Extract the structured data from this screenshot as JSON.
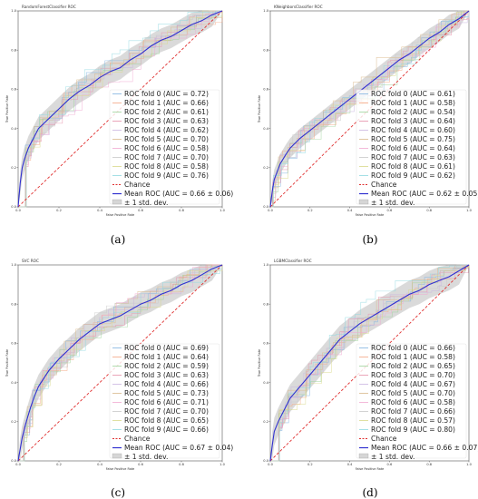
{
  "figure": {
    "panel_letters": [
      "(a)",
      "(b)",
      "(c)",
      "(d)"
    ]
  },
  "colors": {
    "fold_colors": [
      "#7fb2e0",
      "#f4a582",
      "#9ed39a",
      "#e58fa8",
      "#c9b4e0",
      "#d9b88a",
      "#f0a8d0",
      "#c8c8c8",
      "#d8d88a",
      "#8fd8e0"
    ],
    "chance": "#e03030",
    "mean": "#3030d0",
    "band": "#bbbbbb"
  },
  "chart_data": [
    {
      "type": "line",
      "title": "RandomForestClassifier ROC",
      "xlabel": "False Positive Rate",
      "ylabel": "True Positive Rate",
      "xlim": [
        0.0,
        1.0
      ],
      "ylim": [
        0.0,
        1.0
      ],
      "xticks": [
        "0.0",
        "0.2",
        "0.4",
        "0.6",
        "0.8",
        "1.0"
      ],
      "yticks": [
        "0.0",
        "0.2",
        "0.4",
        "0.6",
        "0.8",
        "1.0"
      ],
      "legend_position": "lower-right",
      "series": [
        {
          "name": "ROC fold 0 (AUC = 0.72)",
          "auc": 0.72
        },
        {
          "name": "ROC fold 1 (AUC = 0.66)",
          "auc": 0.66
        },
        {
          "name": "ROC fold 2 (AUC = 0.61)",
          "auc": 0.61
        },
        {
          "name": "ROC fold 3 (AUC = 0.63)",
          "auc": 0.63
        },
        {
          "name": "ROC fold 4 (AUC = 0.62)",
          "auc": 0.62
        },
        {
          "name": "ROC fold 5 (AUC = 0.70)",
          "auc": 0.7
        },
        {
          "name": "ROC fold 6 (AUC = 0.58)",
          "auc": 0.58
        },
        {
          "name": "ROC fold 7 (AUC = 0.70)",
          "auc": 0.7
        },
        {
          "name": "ROC fold 8 (AUC = 0.58)",
          "auc": 0.58
        },
        {
          "name": "ROC fold 9 (AUC = 0.76)",
          "auc": 0.76
        }
      ],
      "chance": {
        "name": "Chance",
        "x": [
          0,
          1
        ],
        "y": [
          0,
          1
        ]
      },
      "mean": {
        "name": "Mean ROC (AUC = 0.66 ± 0.06)",
        "x": [
          0,
          0.01,
          0.02,
          0.03,
          0.05,
          0.08,
          0.1,
          0.13,
          0.15,
          0.2,
          0.25,
          0.3,
          0.35,
          0.4,
          0.45,
          0.5,
          0.55,
          0.6,
          0.65,
          0.7,
          0.75,
          0.8,
          0.85,
          0.9,
          0.95,
          1.0
        ],
        "y": [
          0,
          0.12,
          0.2,
          0.24,
          0.3,
          0.36,
          0.4,
          0.43,
          0.45,
          0.5,
          0.55,
          0.59,
          0.62,
          0.66,
          0.69,
          0.71,
          0.75,
          0.78,
          0.82,
          0.85,
          0.87,
          0.9,
          0.93,
          0.95,
          0.98,
          1.0
        ]
      },
      "std_band": {
        "name": "± 1 std. dev.",
        "halfwidth": 0.06
      }
    },
    {
      "type": "line",
      "title": "KNeighborsClassifier ROC",
      "xlabel": "False Positive Rate",
      "ylabel": "True Positive Rate",
      "xlim": [
        0.0,
        1.0
      ],
      "ylim": [
        0.0,
        1.0
      ],
      "xticks": [
        "0.0",
        "0.2",
        "0.4",
        "0.6",
        "0.8",
        "1.0"
      ],
      "yticks": [
        "0.0",
        "0.2",
        "0.4",
        "0.6",
        "0.8",
        "1.0"
      ],
      "legend_position": "lower-right",
      "series": [
        {
          "name": "ROC fold 0 (AUC = 0.61)",
          "auc": 0.61
        },
        {
          "name": "ROC fold 1 (AUC = 0.58)",
          "auc": 0.58
        },
        {
          "name": "ROC fold 2 (AUC = 0.54)",
          "auc": 0.54
        },
        {
          "name": "ROC fold 3 (AUC = 0.64)",
          "auc": 0.64
        },
        {
          "name": "ROC fold 4 (AUC = 0.60)",
          "auc": 0.6
        },
        {
          "name": "ROC fold 5 (AUC = 0.75)",
          "auc": 0.75
        },
        {
          "name": "ROC fold 6 (AUC = 0.64)",
          "auc": 0.64
        },
        {
          "name": "ROC fold 7 (AUC = 0.63)",
          "auc": 0.63
        },
        {
          "name": "ROC fold 8 (AUC = 0.61)",
          "auc": 0.61
        },
        {
          "name": "ROC fold 9 (AUC = 0.62)",
          "auc": 0.62
        }
      ],
      "chance": {
        "name": "Chance",
        "x": [
          0,
          1
        ],
        "y": [
          0,
          1
        ]
      },
      "mean": {
        "name": "Mean ROC (AUC = 0.62 ± 0.05)",
        "x": [
          0,
          0.01,
          0.02,
          0.05,
          0.08,
          0.1,
          0.15,
          0.2,
          0.25,
          0.3,
          0.35,
          0.4,
          0.45,
          0.5,
          0.55,
          0.6,
          0.65,
          0.7,
          0.75,
          0.8,
          0.85,
          0.9,
          0.95,
          1.0
        ],
        "y": [
          0,
          0.08,
          0.14,
          0.22,
          0.27,
          0.3,
          0.35,
          0.39,
          0.43,
          0.47,
          0.51,
          0.55,
          0.59,
          0.63,
          0.67,
          0.71,
          0.75,
          0.78,
          0.82,
          0.86,
          0.89,
          0.93,
          0.96,
          1.0
        ]
      },
      "std_band": {
        "name": "± 1 std. dev.",
        "halfwidth": 0.05
      }
    },
    {
      "type": "line",
      "title": "SVC ROC",
      "xlabel": "False Positive Rate",
      "ylabel": "True Positive Rate",
      "xlim": [
        0.0,
        1.0
      ],
      "ylim": [
        0.0,
        1.0
      ],
      "xticks": [
        "0.0",
        "0.2",
        "0.4",
        "0.6",
        "0.8",
        "1.0"
      ],
      "yticks": [
        "0.0",
        "0.2",
        "0.4",
        "0.6",
        "0.8",
        "1.0"
      ],
      "legend_position": "lower-right",
      "series": [
        {
          "name": "ROC fold 0 (AUC = 0.69)",
          "auc": 0.69
        },
        {
          "name": "ROC fold 1 (AUC = 0.64)",
          "auc": 0.64
        },
        {
          "name": "ROC fold 2 (AUC = 0.59)",
          "auc": 0.59
        },
        {
          "name": "ROC fold 3 (AUC = 0.63)",
          "auc": 0.63
        },
        {
          "name": "ROC fold 4 (AUC = 0.66)",
          "auc": 0.66
        },
        {
          "name": "ROC fold 5 (AUC = 0.73)",
          "auc": 0.73
        },
        {
          "name": "ROC fold 6 (AUC = 0.71)",
          "auc": 0.71
        },
        {
          "name": "ROC fold 7 (AUC = 0.70)",
          "auc": 0.7
        },
        {
          "name": "ROC fold 8 (AUC = 0.65)",
          "auc": 0.65
        },
        {
          "name": "ROC fold 9 (AUC = 0.66)",
          "auc": 0.66
        }
      ],
      "chance": {
        "name": "Chance",
        "x": [
          0,
          1
        ],
        "y": [
          0,
          1
        ]
      },
      "mean": {
        "name": "Mean ROC (AUC = 0.67 ± 0.04)",
        "x": [
          0,
          0.01,
          0.02,
          0.04,
          0.06,
          0.08,
          0.1,
          0.15,
          0.2,
          0.25,
          0.3,
          0.35,
          0.4,
          0.45,
          0.5,
          0.55,
          0.6,
          0.65,
          0.7,
          0.75,
          0.8,
          0.85,
          0.9,
          0.95,
          1.0
        ],
        "y": [
          0,
          0.06,
          0.12,
          0.2,
          0.27,
          0.33,
          0.38,
          0.46,
          0.52,
          0.57,
          0.62,
          0.66,
          0.7,
          0.72,
          0.74,
          0.77,
          0.8,
          0.82,
          0.85,
          0.87,
          0.9,
          0.92,
          0.95,
          0.98,
          1.0
        ]
      },
      "std_band": {
        "name": "± 1 std. dev.",
        "halfwidth": 0.06
      }
    },
    {
      "type": "line",
      "title": "LGBMClassifier ROC",
      "xlabel": "False Positive Rate",
      "ylabel": "True Positive Rate",
      "xlim": [
        0.0,
        1.0
      ],
      "ylim": [
        0.0,
        1.0
      ],
      "xticks": [
        "0.0",
        "0.2",
        "0.4",
        "0.6",
        "0.8",
        "1.0"
      ],
      "yticks": [
        "0.0",
        "0.2",
        "0.4",
        "0.6",
        "0.8",
        "1.0"
      ],
      "legend_position": "lower-right",
      "series": [
        {
          "name": "ROC fold 0 (AUC = 0.66)",
          "auc": 0.66
        },
        {
          "name": "ROC fold 1 (AUC = 0.58)",
          "auc": 0.58
        },
        {
          "name": "ROC fold 2 (AUC = 0.65)",
          "auc": 0.65
        },
        {
          "name": "ROC fold 3 (AUC = 0.70)",
          "auc": 0.7
        },
        {
          "name": "ROC fold 4 (AUC = 0.67)",
          "auc": 0.67
        },
        {
          "name": "ROC fold 5 (AUC = 0.70)",
          "auc": 0.7
        },
        {
          "name": "ROC fold 6 (AUC = 0.58)",
          "auc": 0.58
        },
        {
          "name": "ROC fold 7 (AUC = 0.66)",
          "auc": 0.66
        },
        {
          "name": "ROC fold 8 (AUC = 0.57)",
          "auc": 0.57
        },
        {
          "name": "ROC fold 9 (AUC = 0.80)",
          "auc": 0.8
        }
      ],
      "chance": {
        "name": "Chance",
        "x": [
          0,
          1
        ],
        "y": [
          0,
          1
        ]
      },
      "mean": {
        "name": "Mean ROC (AUC = 0.66 ± 0.07)",
        "x": [
          0,
          0.01,
          0.02,
          0.04,
          0.06,
          0.08,
          0.1,
          0.15,
          0.2,
          0.25,
          0.3,
          0.35,
          0.4,
          0.45,
          0.5,
          0.55,
          0.6,
          0.65,
          0.7,
          0.75,
          0.8,
          0.85,
          0.9,
          0.95,
          1.0
        ],
        "y": [
          0,
          0.08,
          0.15,
          0.2,
          0.24,
          0.28,
          0.32,
          0.38,
          0.44,
          0.5,
          0.56,
          0.62,
          0.66,
          0.7,
          0.73,
          0.76,
          0.79,
          0.82,
          0.85,
          0.87,
          0.9,
          0.92,
          0.94,
          0.97,
          1.0
        ]
      },
      "std_band": {
        "name": "± 1 std. dev.",
        "halfwidth": 0.07
      }
    }
  ]
}
